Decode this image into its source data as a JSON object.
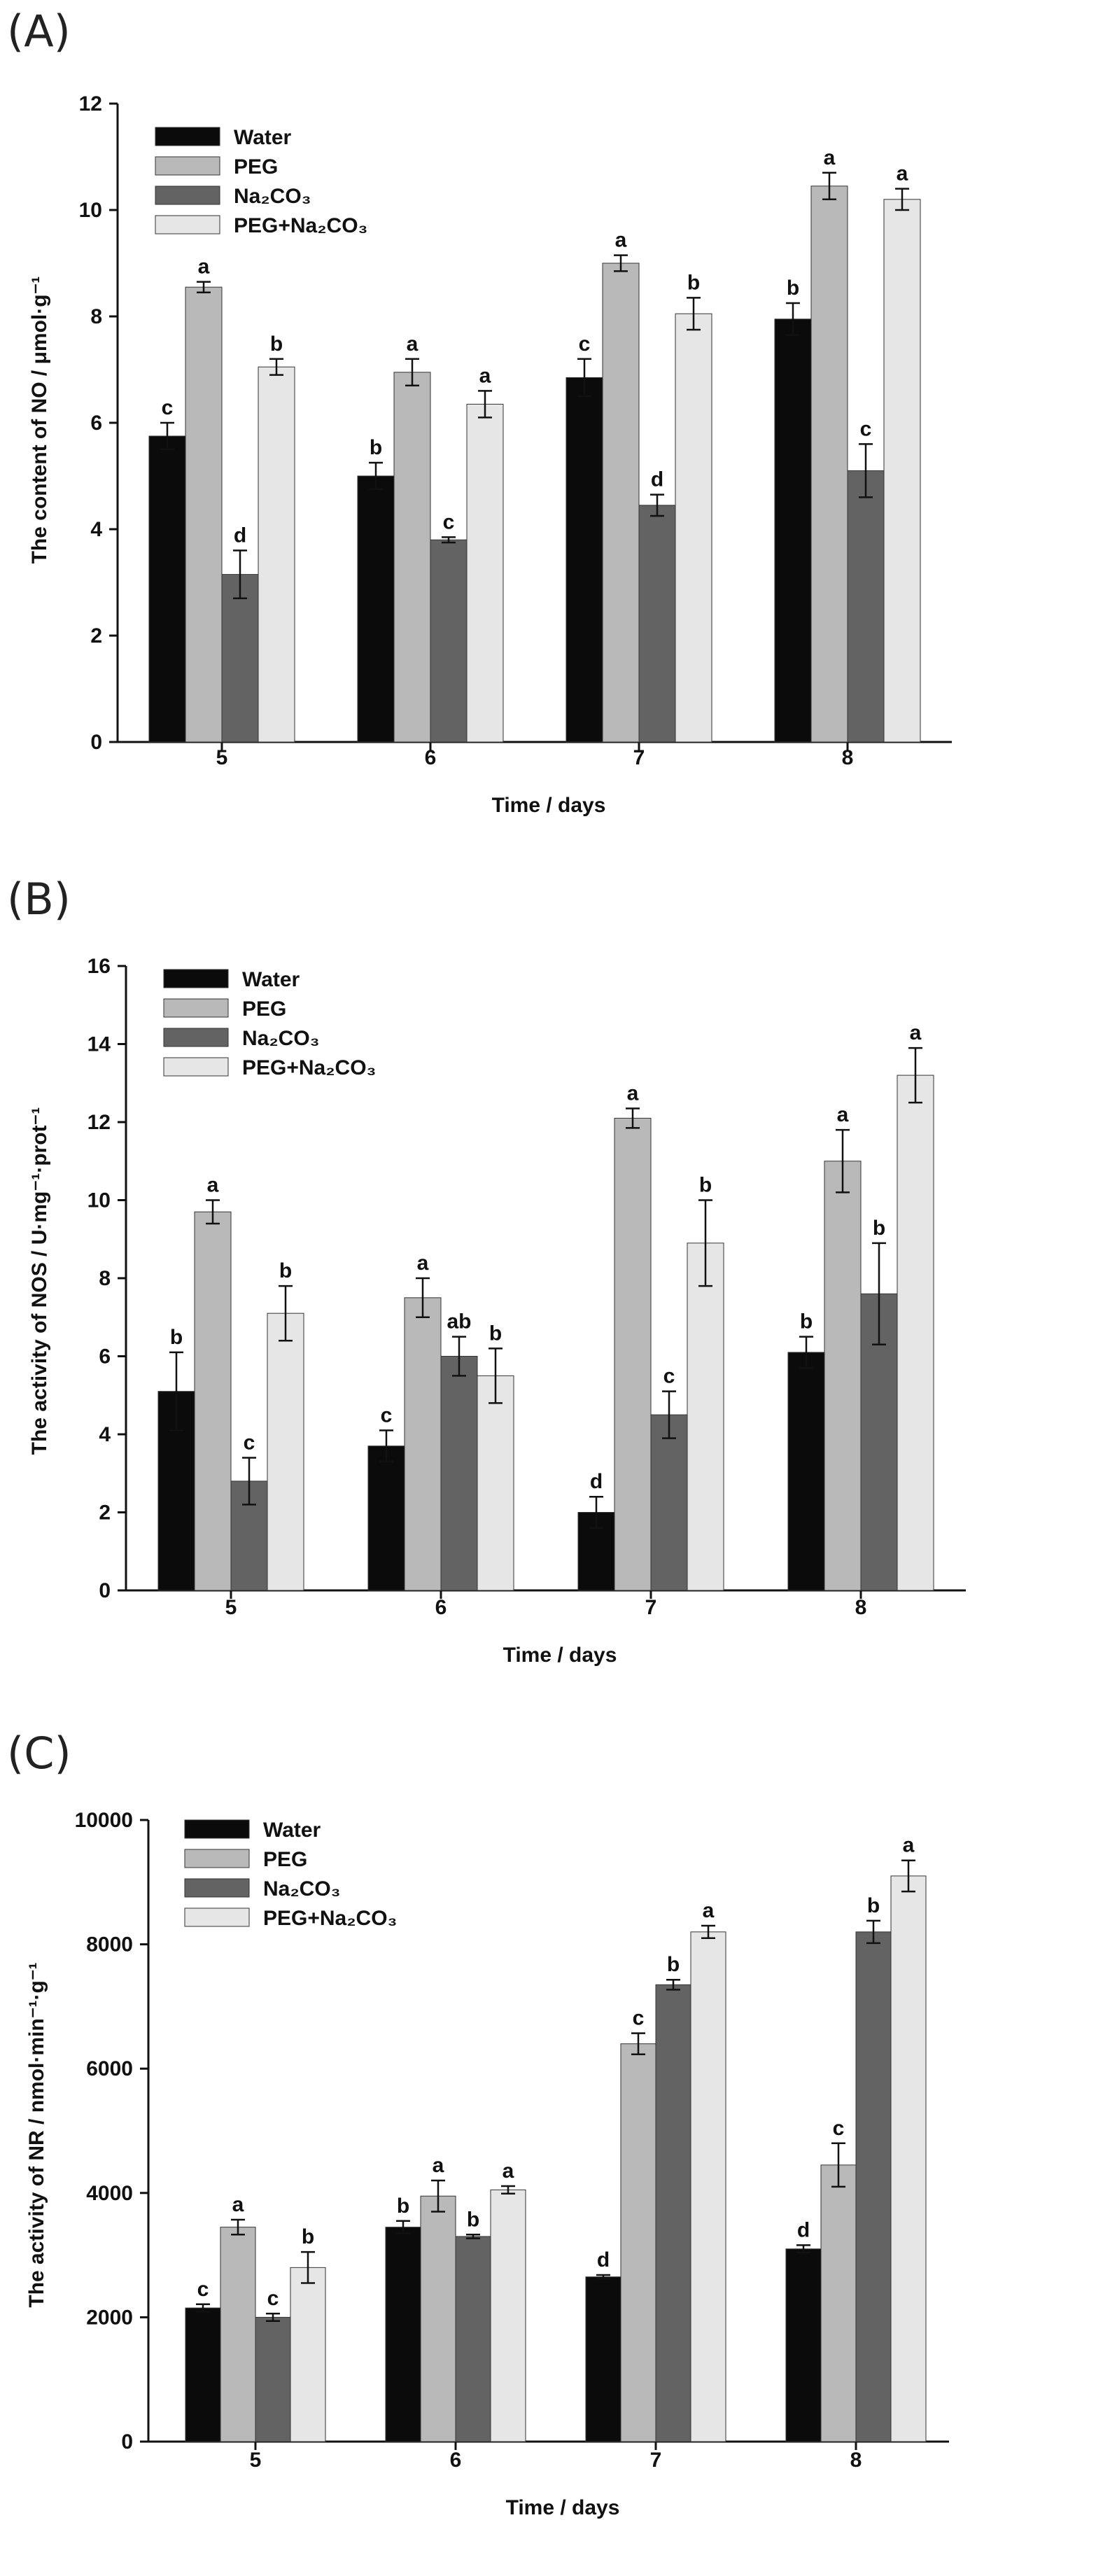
{
  "colors": {
    "Water": "#0b0b0b",
    "PEG": "#b9b9b9",
    "Na2CO3": "#636363",
    "PEG+Na2CO3": "#e6e6e6"
  },
  "chart_data": [
    {
      "panel": "(A)",
      "type": "bar",
      "title": "",
      "xlabel": "Time / days",
      "ylabel": "The content of NO / μmol·g⁻¹",
      "ylim": [
        0,
        12
      ],
      "yticks": [
        0,
        2,
        4,
        6,
        8,
        10,
        12
      ],
      "categories": [
        "5",
        "6",
        "7",
        "8"
      ],
      "legend_position": "top-left",
      "series": [
        {
          "name": "Water",
          "legend_label": "Water",
          "values": [
            5.75,
            5.0,
            6.85,
            7.95
          ],
          "errors": [
            0.25,
            0.25,
            0.35,
            0.3
          ],
          "letters": [
            "c",
            "b",
            "c",
            "b"
          ]
        },
        {
          "name": "PEG",
          "legend_label": "PEG",
          "values": [
            8.55,
            6.95,
            9.0,
            10.45
          ],
          "errors": [
            0.1,
            0.25,
            0.15,
            0.25
          ],
          "letters": [
            "a",
            "a",
            "a",
            "a"
          ]
        },
        {
          "name": "Na2CO3",
          "legend_label": "Na₂CO₃",
          "values": [
            3.15,
            3.8,
            4.45,
            5.1
          ],
          "errors": [
            0.45,
            0.05,
            0.2,
            0.5
          ],
          "letters": [
            "d",
            "c",
            "d",
            "c"
          ]
        },
        {
          "name": "PEG+Na2CO3",
          "legend_label": "PEG+Na₂CO₃",
          "values": [
            7.05,
            6.35,
            8.05,
            10.2
          ],
          "errors": [
            0.15,
            0.25,
            0.3,
            0.2
          ],
          "letters": [
            "b",
            "a",
            "b",
            "a"
          ]
        }
      ]
    },
    {
      "panel": "(B)",
      "type": "bar",
      "title": "",
      "xlabel": "Time / days",
      "ylabel": "The activity of NOS / U·mg⁻¹·prot⁻¹",
      "ylim": [
        0,
        16
      ],
      "yticks": [
        0,
        2,
        4,
        6,
        8,
        10,
        12,
        14,
        16
      ],
      "categories": [
        "5",
        "6",
        "7",
        "8"
      ],
      "legend_position": "top-left",
      "series": [
        {
          "name": "Water",
          "legend_label": "Water",
          "values": [
            5.1,
            3.7,
            2.0,
            6.1
          ],
          "errors": [
            1.0,
            0.4,
            0.4,
            0.4
          ],
          "letters": [
            "b",
            "c",
            "d",
            "b"
          ]
        },
        {
          "name": "PEG",
          "legend_label": "PEG",
          "values": [
            9.7,
            7.5,
            12.1,
            11.0
          ],
          "errors": [
            0.3,
            0.5,
            0.25,
            0.8
          ],
          "letters": [
            "a",
            "a",
            "a",
            "a"
          ]
        },
        {
          "name": "Na2CO3",
          "legend_label": "Na₂CO₃",
          "values": [
            2.8,
            6.0,
            4.5,
            7.6
          ],
          "errors": [
            0.6,
            0.5,
            0.6,
            1.3
          ],
          "letters": [
            "c",
            "ab",
            "c",
            "b"
          ]
        },
        {
          "name": "PEG+Na2CO3",
          "legend_label": "PEG+Na₂CO₃",
          "values": [
            7.1,
            5.5,
            8.9,
            13.2
          ],
          "errors": [
            0.7,
            0.7,
            1.1,
            0.7
          ],
          "letters": [
            "b",
            "b",
            "b",
            "a"
          ]
        }
      ]
    },
    {
      "panel": "(C)",
      "type": "bar",
      "title": "",
      "xlabel": "Time / days",
      "ylabel": "The activity of NR / nmol·min⁻¹·g⁻¹",
      "ylim": [
        0,
        10000
      ],
      "yticks": [
        0,
        2000,
        4000,
        6000,
        8000,
        10000
      ],
      "categories": [
        "5",
        "6",
        "7",
        "8"
      ],
      "legend_position": "top-left",
      "series": [
        {
          "name": "Water",
          "legend_label": "Water",
          "values": [
            2150,
            3450,
            2650,
            3100
          ],
          "errors": [
            60,
            100,
            30,
            60
          ],
          "letters": [
            "c",
            "b",
            "d",
            "d"
          ]
        },
        {
          "name": "PEG",
          "legend_label": "PEG",
          "values": [
            3450,
            3950,
            6400,
            4450
          ],
          "errors": [
            120,
            250,
            170,
            350
          ],
          "letters": [
            "a",
            "a",
            "c",
            "c"
          ]
        },
        {
          "name": "Na2CO3",
          "legend_label": "Na₂CO₃",
          "values": [
            2000,
            3300,
            7350,
            8200
          ],
          "errors": [
            60,
            30,
            80,
            180
          ],
          "letters": [
            "c",
            "b",
            "b",
            "b"
          ]
        },
        {
          "name": "PEG+Na2CO3",
          "legend_label": "PEG+Na₂CO₃",
          "values": [
            2800,
            4050,
            8200,
            9100
          ],
          "errors": [
            250,
            60,
            100,
            250
          ],
          "letters": [
            "b",
            "a",
            "a",
            "a"
          ]
        }
      ]
    }
  ]
}
